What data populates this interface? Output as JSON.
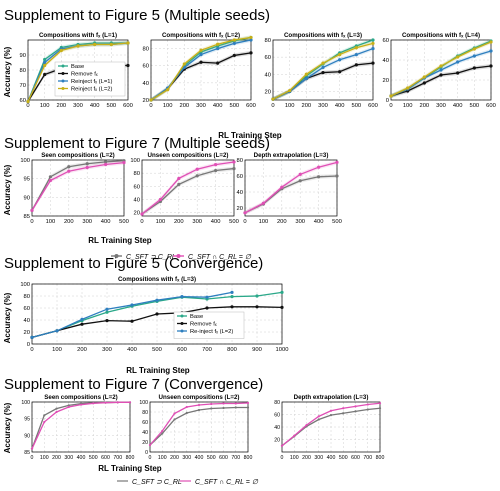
{
  "sections": [
    {
      "heading": "Supplement to Figure 5 (Multiple seeds)",
      "xlabel": "RL Training Step",
      "ylabel": "Accuracy (%)",
      "legend": [
        "Base",
        "Remove fₓ",
        "Reinject fₓ (L=1)",
        "Reinject fₓ (L=2)"
      ]
    },
    {
      "heading": "Supplement to Figure 7 (Multiple seeds)",
      "xlabel": "RL Training Step",
      "ylabel": "Accuracy (%)",
      "legend": [
        "C_SFT ⊃ C_RL",
        "C_SFT ∩ C_RL = ∅"
      ]
    },
    {
      "heading": "Supplement to Figure 5 (Convergence)",
      "xlabel": "RL Training Step",
      "ylabel": "Accuracy (%)",
      "legend": [
        "Base",
        "Remove fₓ",
        "Re-inject fₓ (L=2)"
      ]
    },
    {
      "heading": "Supplement to Figure 7 (Convergence)",
      "xlabel": "RL Training Step",
      "ylabel": "Accuracy (%)",
      "legend": [
        "C_SFT ⊃ C_RL",
        "C_SFT ∩ C_RL = ∅"
      ]
    }
  ],
  "colors": {
    "base": "#2aa889",
    "remove": "#111111",
    "reinject1": "#2e7fbf",
    "reinject2": "#c8b017",
    "sup": "#777777",
    "disj": "#e04fb5"
  },
  "chart_data": [
    {
      "type": "line",
      "title": "Compositions with fₓ (L=1)",
      "x": [
        0,
        100,
        200,
        300,
        400,
        500,
        600
      ],
      "xlim": [
        0,
        600
      ],
      "ylim": [
        60,
        100
      ],
      "yticks": [
        60,
        70,
        80,
        90
      ],
      "xticks": [
        0,
        100,
        200,
        300,
        400,
        500,
        600
      ],
      "ylabel": "Accuracy (%)",
      "series": [
        {
          "name": "Base",
          "color": "#2aa889",
          "values": [
            59,
            87,
            95,
            97,
            98,
            98,
            98
          ]
        },
        {
          "name": "Remove fₓ",
          "color": "#111111",
          "values": [
            59,
            77,
            81,
            82,
            82,
            83,
            83
          ]
        },
        {
          "name": "Reinject fₓ (L=1)",
          "color": "#2e7fbf",
          "values": [
            59,
            85,
            94,
            96,
            97,
            97,
            98
          ]
        },
        {
          "name": "Reinject fₓ (L=2)",
          "color": "#c8b017",
          "values": [
            59,
            83,
            93,
            96,
            97,
            97,
            98
          ]
        }
      ]
    },
    {
      "type": "line",
      "title": "Compositions with fₓ (L=2)",
      "x": [
        0,
        100,
        200,
        300,
        400,
        500,
        600
      ],
      "xlim": [
        0,
        600
      ],
      "ylim": [
        20,
        90
      ],
      "yticks": [
        20,
        40,
        60,
        80
      ],
      "xticks": [
        0,
        100,
        200,
        300,
        400,
        500,
        600
      ],
      "series": [
        {
          "name": "Base",
          "color": "#2aa889",
          "values": [
            20,
            33,
            60,
            76,
            83,
            89,
            93
          ]
        },
        {
          "name": "Remove fₓ",
          "color": "#111111",
          "values": [
            20,
            33,
            56,
            64,
            63,
            72,
            75
          ]
        },
        {
          "name": "Reinject fₓ (L=1)",
          "color": "#2e7fbf",
          "values": [
            20,
            34,
            58,
            73,
            80,
            86,
            90
          ]
        },
        {
          "name": "Reinject fₓ (L=2)",
          "color": "#c8b017",
          "values": [
            20,
            32,
            62,
            78,
            85,
            90,
            93
          ]
        }
      ]
    },
    {
      "type": "line",
      "title": "Compositions with fₓ (L=3)",
      "x": [
        0,
        100,
        200,
        300,
        400,
        500,
        600
      ],
      "xlim": [
        0,
        600
      ],
      "ylim": [
        10,
        80
      ],
      "yticks": [
        20,
        40,
        60,
        80
      ],
      "xticks": [
        0,
        100,
        200,
        300,
        400,
        500,
        600
      ],
      "series": [
        {
          "name": "Base",
          "color": "#2aa889",
          "values": [
            11,
            20,
            38,
            52,
            65,
            73,
            80
          ]
        },
        {
          "name": "Remove fₓ",
          "color": "#111111",
          "values": [
            11,
            20,
            35,
            42,
            43,
            51,
            53
          ]
        },
        {
          "name": "Reinject fₓ (L=1)",
          "color": "#2e7fbf",
          "values": [
            11,
            20,
            35,
            48,
            57,
            63,
            70
          ]
        },
        {
          "name": "Reinject fₓ (L=2)",
          "color": "#c8b017",
          "values": [
            11,
            21,
            40,
            53,
            63,
            71,
            76
          ]
        }
      ]
    },
    {
      "type": "line",
      "title": "Compositions with fₓ (L=4)",
      "x": [
        0,
        100,
        200,
        300,
        400,
        500,
        600
      ],
      "xlim": [
        0,
        600
      ],
      "ylim": [
        0,
        60
      ],
      "yticks": [
        0,
        20,
        40,
        60
      ],
      "xticks": [
        0,
        100,
        200,
        300,
        400,
        500,
        600
      ],
      "series": [
        {
          "name": "Base",
          "color": "#2aa889",
          "values": [
            4,
            11,
            22,
            33,
            44,
            52,
            59
          ]
        },
        {
          "name": "Remove fₓ",
          "color": "#111111",
          "values": [
            4,
            9,
            17,
            25,
            27,
            32,
            34
          ]
        },
        {
          "name": "Reinject fₓ (L=1)",
          "color": "#2e7fbf",
          "values": [
            4,
            11,
            22,
            30,
            38,
            44,
            49
          ]
        },
        {
          "name": "Reinject fₓ (L=2)",
          "color": "#c8b017",
          "values": [
            4,
            12,
            23,
            34,
            43,
            51,
            58
          ]
        }
      ]
    },
    {
      "type": "line",
      "title": "Seen compositions (L=2)",
      "x": [
        0,
        100,
        200,
        300,
        400,
        500
      ],
      "xlim": [
        0,
        500
      ],
      "ylim": [
        85,
        100
      ],
      "yticks": [
        85,
        90,
        95,
        100
      ],
      "xticks": [
        0,
        100,
        200,
        300,
        400,
        500
      ],
      "ylabel": "Accuracy (%)",
      "series": [
        {
          "name": "C_SFT ⊃ C_RL",
          "color": "#777777",
          "values": [
            86.5,
            95.5,
            98.2,
            99.0,
            99.5,
            99.8
          ]
        },
        {
          "name": "C_SFT ∩ C_RL = ∅",
          "color": "#e04fb5",
          "values": [
            86.5,
            94.5,
            97.0,
            98.0,
            98.8,
            99.3
          ]
        }
      ]
    },
    {
      "type": "line",
      "title": "Unseen compositions (L=2)",
      "x": [
        0,
        100,
        200,
        300,
        400,
        500
      ],
      "xlim": [
        0,
        500
      ],
      "ylim": [
        15,
        100
      ],
      "yticks": [
        20,
        40,
        60,
        80,
        100
      ],
      "xticks": [
        0,
        100,
        200,
        300,
        400,
        500
      ],
      "series": [
        {
          "name": "C_SFT ⊃ C_RL",
          "color": "#777777",
          "values": [
            18,
            37,
            63,
            76,
            84,
            87
          ]
        },
        {
          "name": "C_SFT ∩ C_RL = ∅",
          "color": "#e04fb5",
          "values": [
            18,
            40,
            72,
            86,
            93,
            97
          ]
        }
      ]
    },
    {
      "type": "line",
      "title": "Depth extrapolation (L=3)",
      "x": [
        0,
        100,
        200,
        300,
        400,
        500
      ],
      "xlim": [
        0,
        500
      ],
      "ylim": [
        10,
        80
      ],
      "yticks": [
        20,
        40,
        60,
        80
      ],
      "xticks": [
        0,
        100,
        200,
        300,
        400,
        500
      ],
      "series": [
        {
          "name": "C_SFT ⊃ C_RL",
          "color": "#777777",
          "values": [
            14,
            25,
            44,
            54,
            59,
            60
          ]
        },
        {
          "name": "C_SFT ∩ C_RL = ∅",
          "color": "#e04fb5",
          "values": [
            14,
            26,
            46,
            62,
            71,
            77
          ]
        }
      ]
    },
    {
      "type": "line",
      "title": "Compositions with fₓ (L=3)",
      "x": [
        0,
        100,
        200,
        300,
        400,
        500,
        600,
        700,
        800,
        900,
        1000
      ],
      "xlim": [
        0,
        1000
      ],
      "ylim": [
        0,
        100
      ],
      "yticks": [
        0,
        20,
        40,
        60,
        80,
        100
      ],
      "xticks": [
        0,
        100,
        200,
        300,
        400,
        500,
        600,
        700,
        800,
        900,
        1000
      ],
      "ylabel": "Accuracy (%)",
      "series": [
        {
          "name": "Base",
          "color": "#2aa889",
          "values": [
            11,
            22,
            39,
            53,
            63,
            71,
            78,
            75,
            79,
            80,
            86
          ]
        },
        {
          "name": "Remove fₓ",
          "color": "#111111",
          "values": [
            11,
            22,
            33,
            39,
            38,
            50,
            52,
            60,
            62,
            62,
            61
          ]
        },
        {
          "name": "Re-inject fₓ (L=2)",
          "color": "#2e7fbf",
          "values": [
            11,
            22,
            41,
            58,
            65,
            73,
            79,
            78,
            86,
            null,
            null
          ]
        }
      ]
    },
    {
      "type": "line",
      "title": "Seen compositions (L=2)",
      "x": [
        0,
        100,
        200,
        300,
        400,
        500,
        600,
        700,
        800
      ],
      "xlim": [
        0,
        800
      ],
      "ylim": [
        85,
        100
      ],
      "yticks": [
        85,
        90,
        95,
        100
      ],
      "xticks": [
        0,
        100,
        200,
        300,
        400,
        500,
        600,
        700,
        800
      ],
      "ylabel": "Accuracy (%)",
      "series": [
        {
          "name": "C_SFT ⊃ C_RL",
          "color": "#777777",
          "values": [
            86,
            96,
            98,
            99,
            99.5,
            99.7,
            99.8,
            99.9,
            99.9
          ]
        },
        {
          "name": "C_SFT ∩ C_RL = ∅",
          "color": "#e04fb5",
          "values": [
            86,
            94,
            97,
            98.5,
            99.2,
            99.6,
            99.8,
            99.9,
            99.9
          ]
        }
      ]
    },
    {
      "type": "line",
      "title": "Unseen compositions (L=2)",
      "x": [
        0,
        100,
        200,
        300,
        400,
        500,
        600,
        700,
        800
      ],
      "xlim": [
        0,
        800
      ],
      "ylim": [
        0,
        100
      ],
      "yticks": [
        0,
        20,
        40,
        60,
        80,
        100
      ],
      "xticks": [
        0,
        100,
        200,
        300,
        400,
        500,
        600,
        700,
        800
      ],
      "series": [
        {
          "name": "C_SFT ⊃ C_RL",
          "color": "#777777",
          "values": [
            14,
            37,
            65,
            78,
            84,
            87,
            88,
            89,
            89
          ]
        },
        {
          "name": "C_SFT ∩ C_RL = ∅",
          "color": "#e04fb5",
          "values": [
            14,
            42,
            77,
            90,
            94,
            96,
            97,
            97,
            98
          ]
        }
      ]
    },
    {
      "type": "line",
      "title": "Depth extrapolation (L=3)",
      "x": [
        0,
        100,
        200,
        300,
        400,
        500,
        600,
        700,
        800
      ],
      "xlim": [
        0,
        800
      ],
      "ylim": [
        0,
        80
      ],
      "yticks": [
        20,
        40,
        60,
        80
      ],
      "xticks": [
        0,
        100,
        200,
        300,
        400,
        500,
        600,
        700,
        800
      ],
      "series": [
        {
          "name": "C_SFT ⊃ C_RL",
          "color": "#777777",
          "values": [
            10,
            25,
            41,
            52,
            59,
            62,
            65,
            68,
            70
          ]
        },
        {
          "name": "C_SFT ∩ C_RL = ∅",
          "color": "#e04fb5",
          "values": [
            10,
            26,
            43,
            57,
            66,
            70,
            73,
            76,
            78
          ]
        }
      ]
    }
  ]
}
